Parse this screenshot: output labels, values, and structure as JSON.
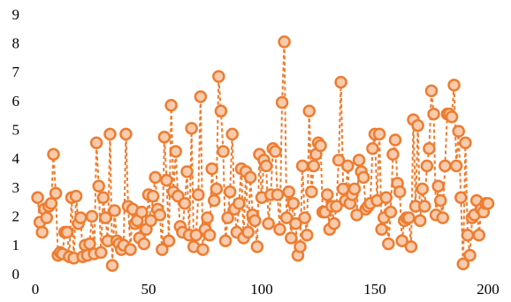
{
  "chart_data": {
    "type": "line",
    "x": [
      1,
      2,
      3,
      4,
      5,
      6,
      7,
      8,
      9,
      10,
      11,
      12,
      13,
      14,
      15,
      16,
      17,
      18,
      19,
      20,
      21,
      22,
      23,
      24,
      25,
      26,
      27,
      28,
      29,
      30,
      31,
      32,
      33,
      34,
      35,
      36,
      37,
      38,
      39,
      40,
      41,
      42,
      43,
      44,
      45,
      46,
      47,
      48,
      49,
      50,
      51,
      52,
      53,
      54,
      55,
      56,
      57,
      58,
      59,
      60,
      61,
      62,
      63,
      64,
      65,
      66,
      67,
      68,
      69,
      70,
      71,
      72,
      73,
      74,
      75,
      76,
      77,
      78,
      79,
      80,
      81,
      82,
      83,
      84,
      85,
      86,
      87,
      88,
      89,
      90,
      91,
      92,
      93,
      94,
      95,
      96,
      97,
      98,
      99,
      100,
      101,
      102,
      103,
      104,
      105,
      106,
      107,
      108,
      109,
      110,
      111,
      112,
      113,
      114,
      115,
      116,
      117,
      118,
      119,
      120,
      121,
      122,
      123,
      124,
      125,
      126,
      127,
      128,
      129,
      130,
      131,
      132,
      133,
      134,
      135,
      136,
      137,
      138,
      139,
      140,
      141,
      142,
      143,
      144,
      145,
      146,
      147,
      148,
      149,
      150,
      151,
      152,
      153,
      154,
      155,
      156,
      157,
      158,
      159,
      160,
      161,
      162,
      163,
      164,
      165,
      166,
      167,
      168,
      169,
      170,
      171,
      172,
      173,
      174,
      175,
      176,
      177,
      178,
      179,
      180,
      181,
      182,
      183,
      184,
      185,
      186,
      187,
      188,
      189,
      190,
      191,
      192,
      193,
      194,
      195,
      196,
      197,
      198,
      199,
      200
    ],
    "series": [
      {
        "color": "#ED7D31",
        "marker_fill": "#F8CBAD",
        "line_style": "dashed",
        "values": [
          2.7,
          1.85,
          1.5,
          2.3,
          2.0,
          2.4,
          2.5,
          4.2,
          2.85,
          0.7,
          0.8,
          0.75,
          1.5,
          1.5,
          0.65,
          2.7,
          0.6,
          2.75,
          1.8,
          2.0,
          0.65,
          1.05,
          0.7,
          1.1,
          2.05,
          0.75,
          4.6,
          3.1,
          0.8,
          2.7,
          2.0,
          1.2,
          4.9,
          0.35,
          2.25,
          1.2,
          1.1,
          0.9,
          1.05,
          4.9,
          2.4,
          0.9,
          2.3,
          1.8,
          1.9,
          1.3,
          2.2,
          1.1,
          1.6,
          2.8,
          1.9,
          2.75,
          3.4,
          2.3,
          2.1,
          0.9,
          4.8,
          3.3,
          1.2,
          5.9,
          2.9,
          4.3,
          2.75,
          1.7,
          1.5,
          2.5,
          3.6,
          1.4,
          5.1,
          1.0,
          1.4,
          2.8,
          6.2,
          0.9,
          1.6,
          2.0,
          1.4,
          3.7,
          2.6,
          3.0,
          6.9,
          5.7,
          4.3,
          1.2,
          2.0,
          2.9,
          4.9,
          2.3,
          1.5,
          2.5,
          3.7,
          1.3,
          3.6,
          1.5,
          3.4,
          2.1,
          1.9,
          1.0,
          4.2,
          2.7,
          4.0,
          3.8,
          1.8,
          2.8,
          4.4,
          4.3,
          2.8,
          1.6,
          6.0,
          8.1,
          2.0,
          2.9,
          1.3,
          2.5,
          1.8,
          0.7,
          1.0,
          3.8,
          2.0,
          1.4,
          5.7,
          2.9,
          3.8,
          4.2,
          4.6,
          4.5,
          2.2,
          2.2,
          2.8,
          1.6,
          2.4,
          1.8,
          2.4,
          4.0,
          6.7,
          3.0,
          2.6,
          3.8,
          2.5,
          2.8,
          3.0,
          2.1,
          4.0,
          3.6,
          3.4,
          2.3,
          2.4,
          2.5,
          4.4,
          4.9,
          2.6,
          4.9,
          1.6,
          2.0,
          2.7,
          1.1,
          2.2,
          4.2,
          4.7,
          3.2,
          2.9,
          1.2,
          1.9,
          2.0,
          2.0,
          1.0,
          5.4,
          2.4,
          5.2,
          1.9,
          3.0,
          2.4,
          3.8,
          4.4,
          6.4,
          5.6,
          2.1,
          3.1,
          2.6,
          2.0,
          3.8,
          5.6,
          5.6,
          5.5,
          6.6,
          3.8,
          5.0,
          2.7,
          0.4,
          4.6,
          1.4,
          0.7,
          2.0,
          2.1,
          2.6,
          1.4,
          2.3,
          2.2,
          2.5,
          2.5
        ]
      }
    ],
    "xlim": [
      0,
      200
    ],
    "xticks": [
      0,
      50,
      100,
      150,
      200
    ],
    "ylim": [
      0,
      9
    ],
    "yticks": [
      0,
      1,
      2,
      3,
      4,
      5,
      6,
      7,
      8,
      9
    ]
  }
}
